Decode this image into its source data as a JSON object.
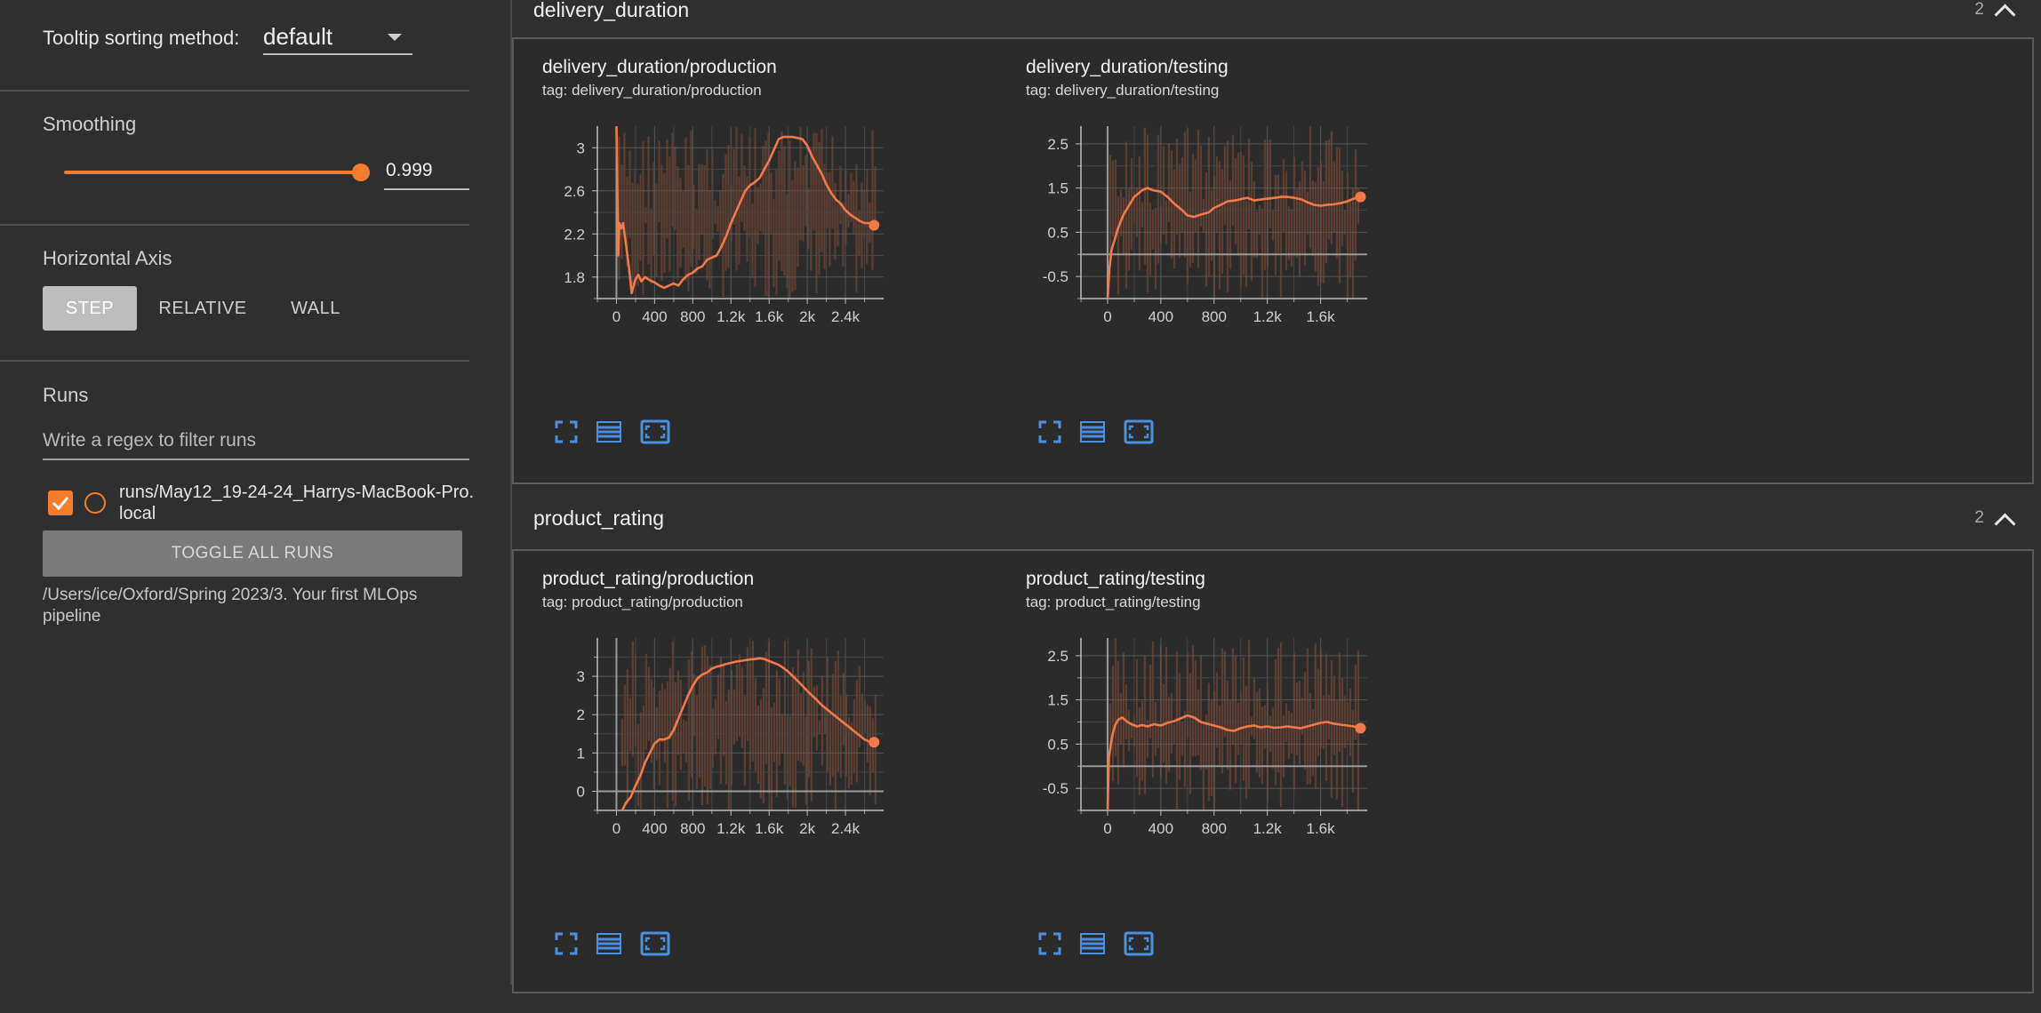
{
  "sidebar": {
    "tooltip_sorting_label": "Tooltip sorting method:",
    "tooltip_sorting_value": "default",
    "smoothing_label": "Smoothing",
    "smoothing_value": "0.999",
    "smoothing_fraction": 0.999,
    "horizontal_axis_label": "Horizontal Axis",
    "axis_buttons": [
      "STEP",
      "RELATIVE",
      "WALL"
    ],
    "axis_selected": "STEP",
    "runs_label": "Runs",
    "runs_filter_placeholder": "Write a regex to filter runs",
    "run": {
      "name": "runs/May12_19-24-24_Harrys-MacBook-Pro.local",
      "checked": true
    },
    "toggle_all_label": "TOGGLE ALL RUNS",
    "logdir": "/Users/ice/Oxford/Spring 2023/3. Your first MLOps pipeline"
  },
  "sections": [
    {
      "title": "delivery_duration",
      "count": "2"
    },
    {
      "title": "product_rating",
      "count": "2"
    }
  ],
  "colors": {
    "accent": "#f57c2b",
    "line": "#f2794a",
    "raw_band": "#8a4e38",
    "icon_blue": "#4a8fe0",
    "grid": "#555555"
  },
  "icons": [
    "fullscreen-icon",
    "data-table-icon",
    "fit-domain-icon"
  ],
  "chart_data": [
    {
      "type": "line",
      "title": "delivery_duration/production",
      "tag": "tag: delivery_duration/production",
      "xlim": [
        -200,
        2800
      ],
      "ylim": [
        1.6,
        3.2
      ],
      "xticks": [
        0,
        400,
        800,
        1200,
        1600,
        2000,
        2400
      ],
      "xtick_labels": [
        "0",
        "400",
        "800",
        "1.2k",
        "1.6k",
        "2k",
        "2.4k"
      ],
      "yticks": [
        1.8,
        2.2,
        2.6,
        3
      ],
      "ytick_labels": [
        "1.8",
        "2.2",
        "2.6",
        "3"
      ],
      "zero_line": null,
      "series": [
        {
          "x": [
            0,
            10,
            20,
            30,
            50,
            70,
            100,
            130,
            160,
            200,
            230,
            260,
            300,
            350,
            400,
            450,
            500,
            550,
            600,
            650,
            700,
            750,
            800,
            850,
            900,
            950,
            1000,
            1050,
            1100,
            1150,
            1200,
            1250,
            1300,
            1350,
            1400,
            1450,
            1500,
            1550,
            1600,
            1650,
            1700,
            1750,
            1800,
            1850,
            1900,
            1950,
            2000,
            2050,
            2100,
            2150,
            2200,
            2250,
            2300,
            2350,
            2400,
            2450,
            2500,
            2550,
            2600,
            2650,
            2700
          ],
          "y": [
            3.2,
            2.6,
            2.0,
            2.3,
            2.25,
            2.3,
            2.1,
            1.9,
            1.65,
            1.78,
            1.82,
            1.76,
            1.8,
            1.77,
            1.75,
            1.72,
            1.7,
            1.72,
            1.74,
            1.72,
            1.78,
            1.82,
            1.84,
            1.88,
            1.9,
            1.96,
            1.98,
            2.0,
            2.08,
            2.18,
            2.3,
            2.4,
            2.5,
            2.6,
            2.65,
            2.68,
            2.72,
            2.8,
            2.88,
            2.98,
            3.08,
            3.1,
            3.1,
            3.1,
            3.09,
            3.08,
            3.02,
            2.92,
            2.84,
            2.76,
            2.66,
            2.58,
            2.52,
            2.48,
            2.42,
            2.38,
            2.35,
            2.32,
            2.3,
            2.3,
            2.28
          ]
        }
      ]
    },
    {
      "type": "line",
      "title": "delivery_duration/testing",
      "tag": "tag: delivery_duration/testing",
      "xlim": [
        -200,
        1950
      ],
      "ylim": [
        -1,
        2.9
      ],
      "xticks": [
        0,
        400,
        800,
        1200,
        1600
      ],
      "xtick_labels": [
        "0",
        "400",
        "800",
        "1.2k",
        "1.6k"
      ],
      "yticks": [
        -0.5,
        0.5,
        1.5,
        2.5
      ],
      "ytick_labels": [
        "-0.5",
        "0.5",
        "1.5",
        "2.5"
      ],
      "zero_line": 0,
      "series": [
        {
          "x": [
            0,
            15,
            30,
            50,
            80,
            120,
            160,
            200,
            260,
            300,
            340,
            400,
            450,
            500,
            560,
            600,
            650,
            700,
            760,
            800,
            850,
            900,
            960,
            1000,
            1050,
            1100,
            1150,
            1200,
            1260,
            1300,
            1350,
            1400,
            1450,
            1500,
            1550,
            1600,
            1650,
            1700,
            1750,
            1800,
            1850,
            1900
          ],
          "y": [
            -1,
            -0.3,
            0.1,
            0.3,
            0.6,
            0.9,
            1.1,
            1.3,
            1.45,
            1.5,
            1.45,
            1.42,
            1.3,
            1.15,
            1.0,
            0.88,
            0.85,
            0.9,
            0.95,
            1.05,
            1.12,
            1.2,
            1.22,
            1.25,
            1.28,
            1.22,
            1.24,
            1.26,
            1.28,
            1.3,
            1.3,
            1.28,
            1.25,
            1.18,
            1.12,
            1.1,
            1.12,
            1.13,
            1.16,
            1.2,
            1.26,
            1.3
          ]
        }
      ]
    },
    {
      "type": "line",
      "title": "product_rating/production",
      "tag": "tag: product_rating/production",
      "xlim": [
        -200,
        2800
      ],
      "ylim": [
        -0.5,
        4
      ],
      "xticks": [
        0,
        400,
        800,
        1200,
        1600,
        2000,
        2400
      ],
      "xtick_labels": [
        "0",
        "400",
        "800",
        "1.2k",
        "1.6k",
        "2k",
        "2.4k"
      ],
      "yticks": [
        0,
        1,
        2,
        3
      ],
      "ytick_labels": [
        "0",
        "1",
        "2",
        "3"
      ],
      "zero_line": 0,
      "series": [
        {
          "x": [
            60,
            100,
            150,
            200,
            250,
            300,
            350,
            400,
            450,
            500,
            550,
            600,
            650,
            700,
            750,
            800,
            850,
            900,
            950,
            1000,
            1050,
            1100,
            1150,
            1200,
            1250,
            1300,
            1350,
            1400,
            1450,
            1500,
            1550,
            1600,
            1650,
            1700,
            1750,
            1800,
            1850,
            1900,
            1950,
            2000,
            2050,
            2100,
            2150,
            2200,
            2250,
            2300,
            2350,
            2400,
            2450,
            2500,
            2550,
            2600,
            2650,
            2700
          ],
          "y": [
            -0.5,
            -0.3,
            -0.15,
            0.15,
            0.4,
            0.75,
            1.0,
            1.25,
            1.35,
            1.35,
            1.4,
            1.6,
            1.9,
            2.2,
            2.5,
            2.75,
            2.95,
            3.05,
            3.1,
            3.2,
            3.25,
            3.28,
            3.32,
            3.35,
            3.38,
            3.4,
            3.42,
            3.44,
            3.45,
            3.47,
            3.45,
            3.4,
            3.35,
            3.3,
            3.22,
            3.12,
            3.0,
            2.88,
            2.75,
            2.62,
            2.5,
            2.38,
            2.25,
            2.15,
            2.05,
            1.95,
            1.85,
            1.75,
            1.65,
            1.55,
            1.45,
            1.35,
            1.3,
            1.28
          ]
        }
      ]
    },
    {
      "type": "line",
      "title": "product_rating/testing",
      "tag": "tag: product_rating/testing",
      "xlim": [
        -200,
        1950
      ],
      "ylim": [
        -1,
        2.9
      ],
      "xticks": [
        0,
        400,
        800,
        1200,
        1600
      ],
      "xtick_labels": [
        "0",
        "400",
        "800",
        "1.2k",
        "1.6k"
      ],
      "yticks": [
        -0.5,
        0.5,
        1.5,
        2.5
      ],
      "ytick_labels": [
        "-0.5",
        "0.5",
        "1.5",
        "2.5"
      ],
      "zero_line": 0,
      "series": [
        {
          "x": [
            0,
            10,
            25,
            40,
            60,
            80,
            110,
            150,
            180,
            220,
            260,
            300,
            350,
            400,
            450,
            500,
            550,
            600,
            650,
            700,
            760,
            800,
            850,
            900,
            950,
            1000,
            1050,
            1100,
            1150,
            1200,
            1250,
            1300,
            1350,
            1400,
            1450,
            1500,
            1550,
            1600,
            1650,
            1700,
            1750,
            1800,
            1850,
            1900
          ],
          "y": [
            -1,
            0.2,
            0.5,
            0.75,
            0.95,
            1.05,
            1.1,
            1.0,
            0.95,
            0.9,
            0.93,
            0.9,
            0.95,
            0.92,
            0.98,
            1.02,
            1.08,
            1.15,
            1.1,
            1.0,
            0.95,
            0.92,
            0.88,
            0.82,
            0.8,
            0.86,
            0.9,
            0.92,
            0.88,
            0.9,
            0.87,
            0.88,
            0.9,
            0.88,
            0.86,
            0.9,
            0.94,
            0.98,
            1.0,
            0.96,
            0.94,
            0.92,
            0.9,
            0.86
          ]
        }
      ]
    }
  ]
}
